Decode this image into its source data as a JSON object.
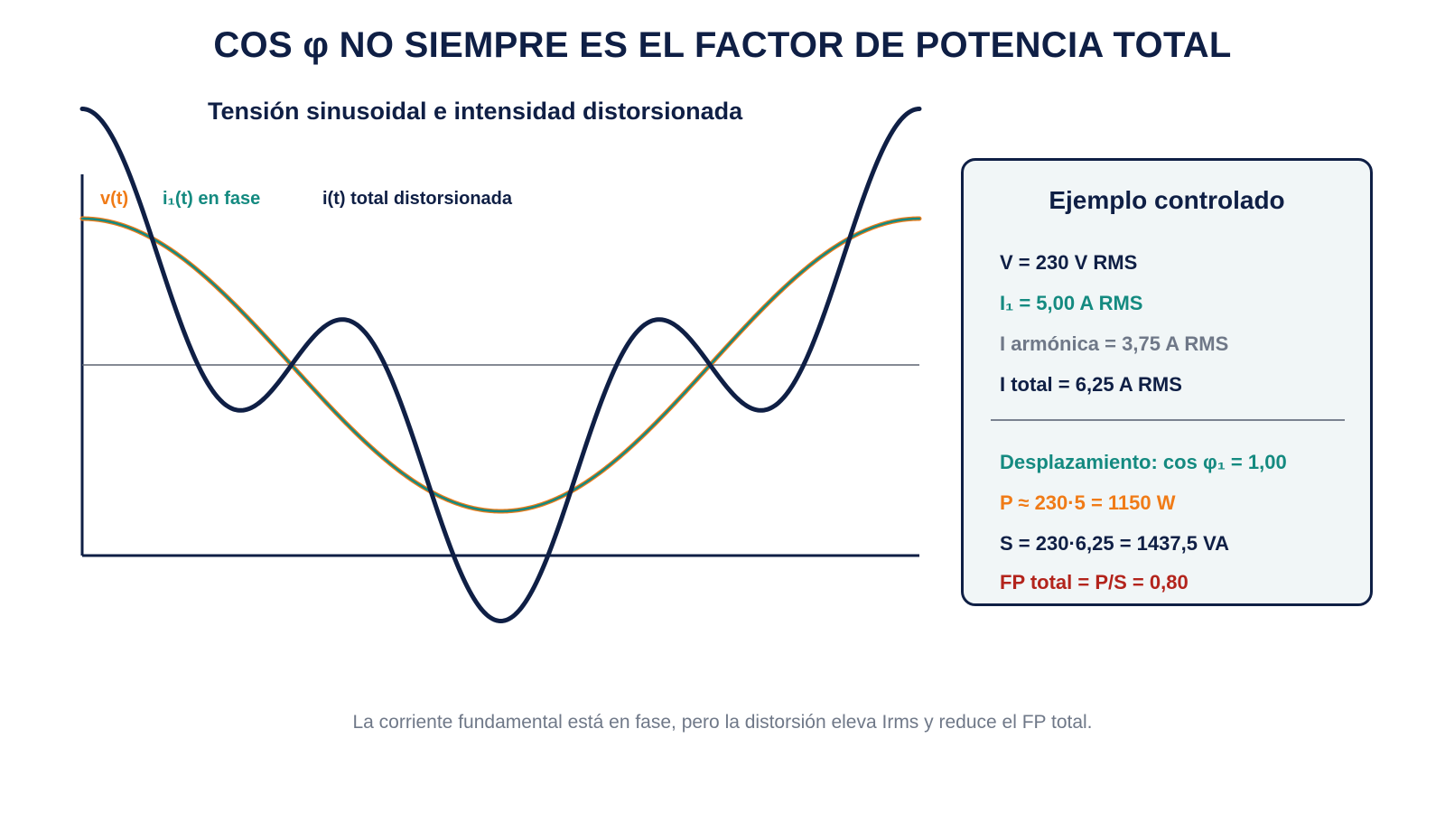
{
  "title": "COS φ NO SIEMPRE ES EL FACTOR DE POTENCIA TOTAL",
  "chart_data": {
    "type": "line",
    "title": "Tensión sinusoidal e intensidad distorsionada",
    "xlabel": "",
    "ylabel": "",
    "x_range_cycles": [
      0,
      1
    ],
    "grid": false,
    "legend_placement": "top-left",
    "series": [
      {
        "name": "v(t)",
        "color": "#f07b17",
        "function": "cos(2πx)",
        "amplitude": 1.0
      },
      {
        "name": "i₁(t) en fase",
        "color": "#148a80",
        "function": "cos(2πx)",
        "amplitude": 1.0
      },
      {
        "name": "i(t) total distorsionada",
        "color": "#0f1f45",
        "function": "cos(2πx) + 0.75·cos(6πx)",
        "fundamental_amplitude": 1.0,
        "harmonic_order": 3,
        "harmonic_amplitude": 0.75
      }
    ]
  },
  "panel": {
    "title": "Ejemplo controlado",
    "lines": [
      {
        "text": "V = 230 V RMS",
        "color": "#0f1f45"
      },
      {
        "text": "I₁ = 5,00 A RMS",
        "color": "#148a80"
      },
      {
        "text": "I armónica = 3,75 A RMS",
        "color": "#6f7888"
      },
      {
        "text": "I total = 6,25 A RMS",
        "color": "#0f1f45"
      },
      {
        "text": "Desplazamiento: cos φ₁ = 1,00",
        "color": "#148a80"
      },
      {
        "text": "P ≈ 230·5 = 1150 W",
        "color": "#f07b17"
      },
      {
        "text": "S = 230·6,25 = 1437,5 VA",
        "color": "#0f1f45"
      },
      {
        "text": "FP total = P/S = 0,80",
        "color": "#b3241c"
      }
    ]
  },
  "footnote": "La corriente fundamental está en fase, pero la distorsión eleva Irms y reduce el FP total."
}
